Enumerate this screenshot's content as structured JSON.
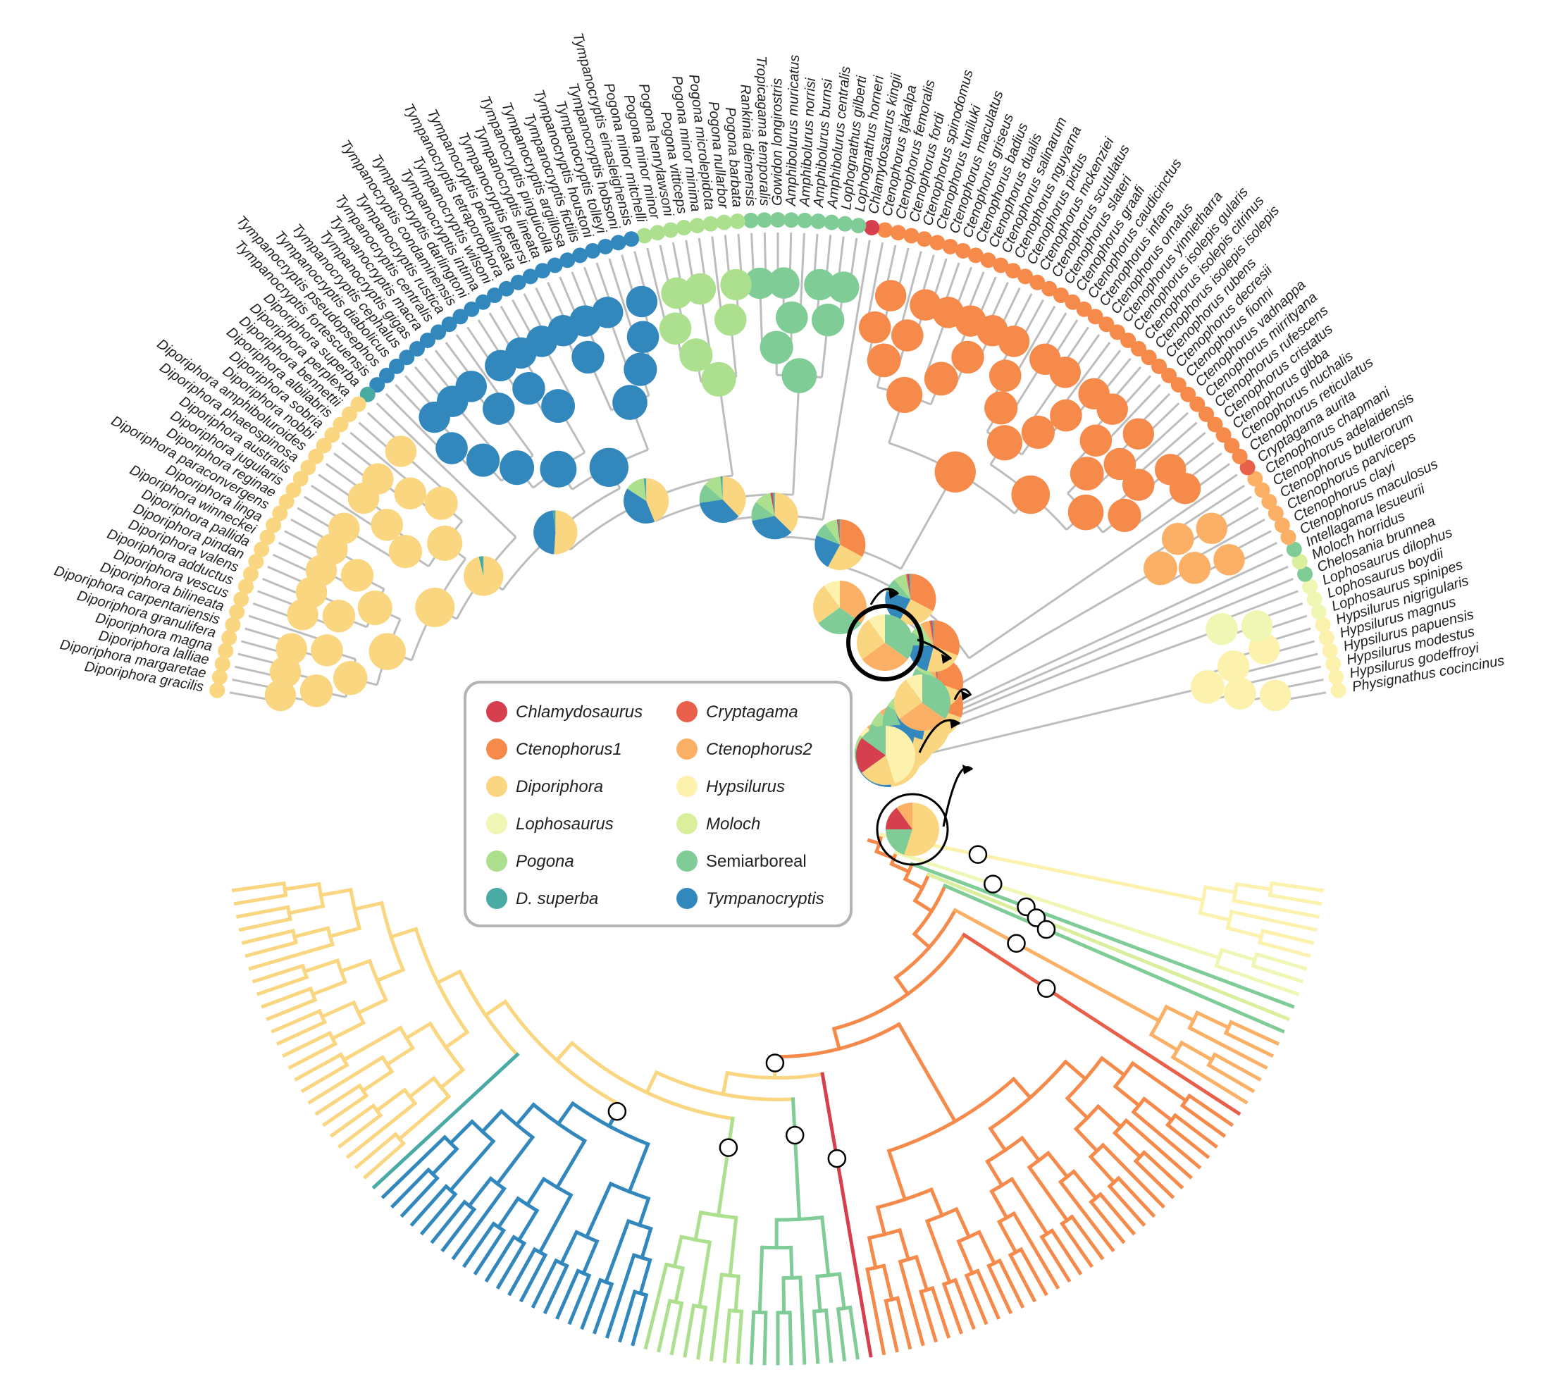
{
  "tips": [
    "Physignathus cocincinus",
    "Hypsilurus godeffroyi",
    "Hypsilurus modestus",
    "Hypsilurus papuensis",
    "Hypsilurus magnus",
    "Hypsilurus nigrigularis",
    "Lophosaurus spinipes",
    "Lophosaurus boydii",
    "Lophosaurus dilophus",
    "Chelosania brunnea",
    "Moloch horridus",
    "Intellagama lesueurii",
    "Ctenophorus maculosus",
    "Ctenophorus clayi",
    "Ctenophorus parviceps",
    "Ctenophorus butlerorum",
    "Ctenophorus adelaidensis",
    "Ctenophorus chapmani",
    "Cryptagama aurita",
    "Ctenophorus reticulatus",
    "Ctenophorus nuchalis",
    "Ctenophorus gibba",
    "Ctenophorus cristatus",
    "Ctenophorus rufescens",
    "Ctenophorus mirrityana",
    "Ctenophorus vadnappa",
    "Ctenophorus fionni",
    "Ctenophorus decresii",
    "Ctenophorus rubens",
    "Ctenophorus isolepis isolepis",
    "Ctenophorus isolepis citrinus",
    "Ctenophorus isolepis gularis",
    "Ctenophorus yinnietharra",
    "Ctenophorus ornatus",
    "Ctenophorus infans",
    "Ctenophorus caudicinctus",
    "Ctenophorus graafi",
    "Ctenophorus slateri",
    "Ctenophorus scutulatus",
    "Ctenophorus mckenziei",
    "Ctenophorus pictus",
    "Ctenophorus nguyarna",
    "Ctenophorus salinarum",
    "Ctenophorus dualis",
    "Ctenophorus badius",
    "Ctenophorus griseus",
    "Ctenophorus maculatus",
    "Ctenophorus tuniluki",
    "Ctenophorus spinodomus",
    "Ctenophorus fordi",
    "Ctenophorus femoralis",
    "Ctenophorus tjakalpa",
    "Chlamydosaurus kingii",
    "Lophognathus horneri",
    "Lophognathus gilberti",
    "Amphibolurus centralis",
    "Amphibolurus burnsi",
    "Amphibolurus norrisi",
    "Amphibolurus muricatus",
    "Gowidon longirostris",
    "Tropicagama temporalis",
    "Rankinia diemensis",
    "Pogona barbata",
    "Pogona nullarbor",
    "Pogona microlepidota",
    "Pogona minor minima",
    "Pogona vitticeps",
    "Pogona henrylawsoni",
    "Pogona minor minor",
    "Pogona minor mitchelli",
    "Tympanocryptis einasleighensis",
    "Tympanocryptis hobsoni",
    "Tympanocryptis tolleyi",
    "Tympanocryptis houstoni",
    "Tympanocryptis fictilis",
    "Tympanocryptis argillosa",
    "Tympanocryptis pinguicolla",
    "Tympanocryptis lineata",
    "Tympanocryptis petersi",
    "Tympanocryptis pentalineata",
    "Tympanocryptis tetraporophora",
    "Tympanocryptis wilsoni",
    "Tympanocryptis intima",
    "Tympanocryptis darlingtoni",
    "Tympanocryptis condaminensis",
    "Tympanocryptis rustica",
    "Tympanocryptis centralis",
    "Tympanocryptis macra",
    "Tympanocryptis gigas",
    "Tympanocryptis cephalus",
    "Tympanocryptis diabolicus",
    "Tympanocryptis pseudopsephos",
    "Tympanocryptis fortescuensis",
    "Diporiphora superba",
    "Diporiphora perplexa",
    "Diporiphora bennettii",
    "Diporiphora albilabris",
    "Diporiphora sobria",
    "Diporiphora nobbi",
    "Diporiphora amphiboluroides",
    "Diporiphora phaeospinosa",
    "Diporiphora australis",
    "Diporiphora jugularis",
    "Diporiphora reginae",
    "Diporiphora paraconvergens",
    "Diporiphora linga",
    "Diporiphora winneckei",
    "Diporiphora pallida",
    "Diporiphora pindan",
    "Diporiphora valens",
    "Diporiphora adductus",
    "Diporiphora vescus",
    "Diporiphora bilineata",
    "Diporiphora carpentariensis",
    "Diporiphora granulifera",
    "Diporiphora magna",
    "Diporiphora lalliae",
    "Diporiphora margaretae",
    "Diporiphora gracilis"
  ],
  "tip_groups": [
    "Hypsilurus",
    "Hypsilurus",
    "Hypsilurus",
    "Hypsilurus",
    "Hypsilurus",
    "Hypsilurus",
    "Lophosaurus",
    "Lophosaurus",
    "Lophosaurus",
    "Semiarboreal",
    "Moloch",
    "Semiarboreal",
    "Ctenophorus2",
    "Ctenophorus2",
    "Ctenophorus2",
    "Ctenophorus2",
    "Ctenophorus2",
    "Ctenophorus2",
    "Cryptagama",
    "Ctenophorus1",
    "Ctenophorus1",
    "Ctenophorus1",
    "Ctenophorus1",
    "Ctenophorus1",
    "Ctenophorus1",
    "Ctenophorus1",
    "Ctenophorus1",
    "Ctenophorus1",
    "Ctenophorus1",
    "Ctenophorus1",
    "Ctenophorus1",
    "Ctenophorus1",
    "Ctenophorus1",
    "Ctenophorus1",
    "Ctenophorus1",
    "Ctenophorus1",
    "Ctenophorus1",
    "Ctenophorus1",
    "Ctenophorus1",
    "Ctenophorus1",
    "Ctenophorus1",
    "Ctenophorus1",
    "Ctenophorus1",
    "Ctenophorus1",
    "Ctenophorus1",
    "Ctenophorus1",
    "Ctenophorus1",
    "Ctenophorus1",
    "Ctenophorus1",
    "Ctenophorus1",
    "Ctenophorus1",
    "Ctenophorus1",
    "Chlamydosaurus",
    "Semiarboreal",
    "Semiarboreal",
    "Semiarboreal",
    "Semiarboreal",
    "Semiarboreal",
    "Semiarboreal",
    "Semiarboreal",
    "Semiarboreal",
    "Semiarboreal",
    "Pogona",
    "Pogona",
    "Pogona",
    "Pogona",
    "Pogona",
    "Pogona",
    "Pogona",
    "Pogona",
    "Tympanocryptis",
    "Tympanocryptis",
    "Tympanocryptis",
    "Tympanocryptis",
    "Tympanocryptis",
    "Tympanocryptis",
    "Tympanocryptis",
    "Tympanocryptis",
    "Tympanocryptis",
    "Tympanocryptis",
    "Tympanocryptis",
    "Tympanocryptis",
    "Tympanocryptis",
    "Tympanocryptis",
    "Tympanocryptis",
    "Tympanocryptis",
    "Tympanocryptis",
    "Tympanocryptis",
    "Tympanocryptis",
    "Tympanocryptis",
    "Tympanocryptis",
    "Tympanocryptis",
    "Tympanocryptis",
    "D. superba",
    "Diporiphora",
    "Diporiphora",
    "Diporiphora",
    "Diporiphora",
    "Diporiphora",
    "Diporiphora",
    "Diporiphora",
    "Diporiphora",
    "Diporiphora",
    "Diporiphora",
    "Diporiphora",
    "Diporiphora",
    "Diporiphora",
    "Diporiphora",
    "Diporiphora",
    "Diporiphora",
    "Diporiphora",
    "Diporiphora",
    "Diporiphora",
    "Diporiphora",
    "Diporiphora",
    "Diporiphora",
    "Diporiphora",
    "Diporiphora",
    "Diporiphora"
  ],
  "legend": [
    {
      "label": "Chlamydosaurus",
      "group": "Chlamydosaurus",
      "italic": true
    },
    {
      "label": "Cryptagama",
      "group": "Cryptagama",
      "italic": true
    },
    {
      "label": "Ctenophorus1",
      "group": "Ctenophorus1",
      "italic": true
    },
    {
      "label": "Ctenophorus2",
      "group": "Ctenophorus2",
      "italic": true
    },
    {
      "label": "Diporiphora",
      "group": "Diporiphora",
      "italic": true
    },
    {
      "label": "Hypsilurus",
      "group": "Hypsilurus",
      "italic": true
    },
    {
      "label": "Lophosaurus",
      "group": "Lophosaurus",
      "italic": true
    },
    {
      "label": "Moloch",
      "group": "Moloch",
      "italic": true
    },
    {
      "label": "Pogona",
      "group": "Pogona",
      "italic": true
    },
    {
      "label": "Semiarboreal",
      "group": "Semiarboreal",
      "italic": false
    },
    {
      "label": "D. superba",
      "group": "D. superba",
      "italic": true
    },
    {
      "label": "Tympanocryptis",
      "group": "Tympanocryptis",
      "italic": true
    }
  ],
  "colors": {
    "Chlamydosaurus": "#d6404e",
    "Cryptagama": "#e8604a",
    "Ctenophorus1": "#f58a4b",
    "Ctenophorus2": "#fbb066",
    "Diporiphora": "#fbd681",
    "Hypsilurus": "#fcf2ae",
    "Lophosaurus": "#f0f7b4",
    "Moloch": "#d9ef9b",
    "Pogona": "#ace08e",
    "Semiarboreal": "#7fcc97",
    "D. superba": "#4aaba4",
    "Tympanocryptis": "#3288bd",
    "tree_gray": "#bdbdbd"
  }
}
